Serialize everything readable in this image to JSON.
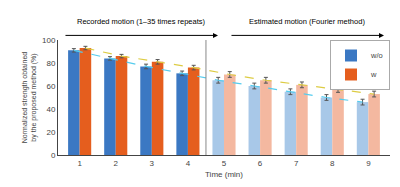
{
  "chart_data": {
    "type": "bar",
    "xlabel": "Time (min)",
    "ylabel": "Normalized strength obtained\nby the proposed method (%)",
    "x": [
      1,
      2,
      3,
      4,
      5,
      6,
      7,
      8,
      9
    ],
    "xlim": [
      0.4,
      9.6
    ],
    "xticks": [
      1,
      2,
      3,
      4,
      5,
      6,
      7,
      8,
      9
    ],
    "ylim": [
      0,
      100
    ],
    "yticks": [
      0,
      20,
      40,
      60,
      80,
      100
    ],
    "grid": false,
    "legend": "upper right",
    "series": [
      {
        "name": "w/o",
        "type": "bar",
        "values": [
          91,
          84,
          77,
          71,
          65,
          60,
          55,
          50,
          46
        ],
        "error": [
          1.5,
          1.5,
          2.0,
          2.0,
          2.5,
          2.5,
          2.5,
          2.5,
          2.5
        ],
        "colors": [
          "#3b78c3",
          "#3b78c3",
          "#3b78c3",
          "#3b78c3",
          "#a8c8e8",
          "#a8c8e8",
          "#a8c8e8",
          "#a8c8e8",
          "#a8c8e8"
        ]
      },
      {
        "name": "w",
        "type": "bar",
        "values": [
          93,
          86,
          81,
          76,
          70,
          65,
          61,
          57,
          53
        ],
        "error": [
          1.5,
          1.5,
          2.0,
          2.0,
          2.5,
          2.5,
          2.5,
          2.5,
          2.5
        ],
        "colors": [
          "#e55e1e",
          "#e55e1e",
          "#e55e1e",
          "#e55e1e",
          "#f4b8a0",
          "#f4b8a0",
          "#f4b8a0",
          "#f4b8a0",
          "#f4b8a0"
        ]
      },
      {
        "type": "line",
        "line_style": "dashed",
        "color": "#55ccee",
        "values": [
          91,
          84,
          77,
          71,
          65,
          60,
          55,
          50,
          46
        ]
      },
      {
        "type": "line",
        "line_style": "dashed",
        "color": "#ddcc44",
        "values": [
          93,
          86,
          81,
          76,
          70,
          65,
          61,
          57,
          53
        ]
      }
    ],
    "vline": 4.5,
    "annotations": [
      "Recorded motion (1–35 times repeats)",
      "Estimated motion (Fourier method)"
    ]
  }
}
